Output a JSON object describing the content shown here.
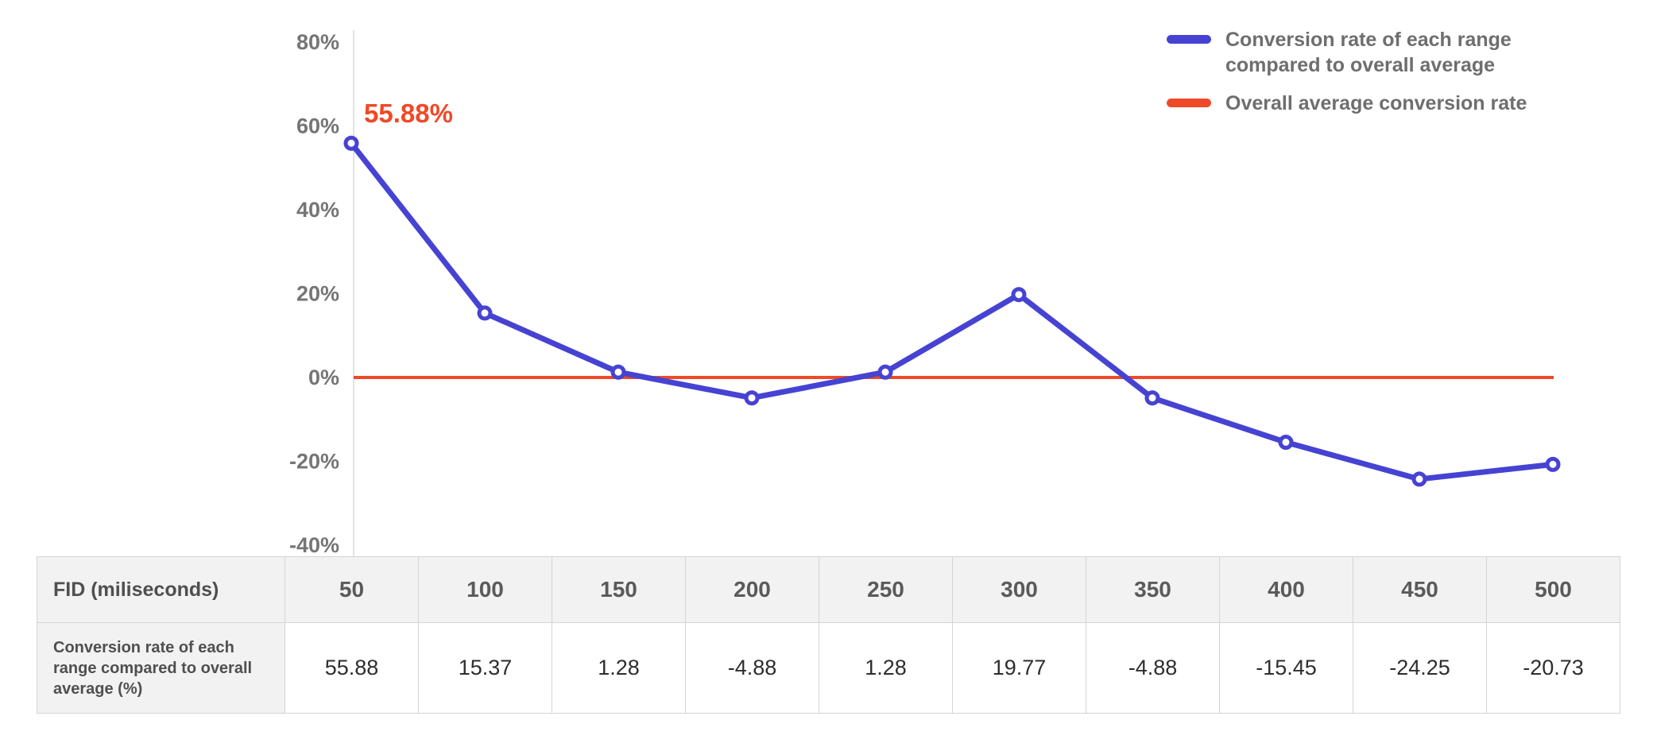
{
  "chart_data": {
    "type": "line",
    "x": [
      50,
      100,
      150,
      200,
      250,
      300,
      350,
      400,
      450,
      500
    ],
    "series": [
      {
        "name": "Conversion rate of each range compared to overall average",
        "values": [
          55.88,
          15.37,
          1.28,
          -4.88,
          1.28,
          19.77,
          -4.88,
          -15.45,
          -24.25,
          -20.73
        ],
        "color": "#4643d3"
      },
      {
        "name": "Overall average conversion rate",
        "type": "constant",
        "value": 0,
        "color": "#f04927"
      }
    ],
    "xlabel": "FID (miliseconds)",
    "ylabel": "",
    "ylim": [
      -40,
      80
    ],
    "yticks": [
      80,
      60,
      40,
      20,
      0,
      -20,
      -40
    ],
    "ytick_labels": [
      "80%",
      "60%",
      "40%",
      "20%",
      "0%",
      "-20%",
      "-40%"
    ],
    "annotation": {
      "text": "55.88%",
      "color": "#f04927"
    },
    "legend_position": "top-right",
    "grid": false
  },
  "legend": {
    "items": [
      {
        "label": "Conversion rate of each range compared to overall average",
        "color": "#4643d3"
      },
      {
        "label": "Overall average conversion rate",
        "color": "#f04927"
      }
    ]
  },
  "table": {
    "header_label": "FID (miliseconds)",
    "row_label": "Conversion rate of each range compared to overall average (%)",
    "columns": [
      "50",
      "100",
      "150",
      "200",
      "250",
      "300",
      "350",
      "400",
      "450",
      "500"
    ],
    "values": [
      "55.88",
      "15.37",
      "1.28",
      "-4.88",
      "1.28",
      "19.77",
      "-4.88",
      "-15.45",
      "-24.25",
      "-20.73"
    ]
  }
}
